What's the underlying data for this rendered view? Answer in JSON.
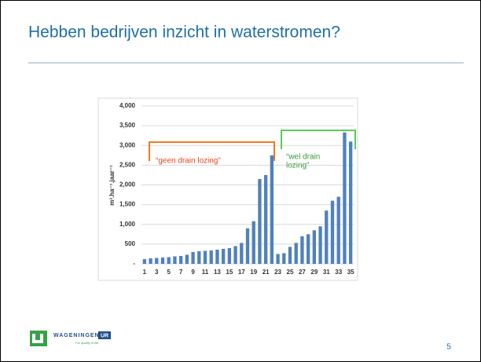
{
  "title": "Hebben bedrijven inzicht in waterstromen?",
  "chart_data": {
    "type": "bar",
    "y_label": "m³.ha⁻¹.jaar⁻¹",
    "categories": [
      "1",
      null,
      "3",
      null,
      "5",
      null,
      "7",
      null,
      "9",
      null,
      "11",
      null,
      "13",
      null,
      "15",
      null,
      "17",
      null,
      "19",
      null,
      "21",
      null,
      "23",
      null,
      "25",
      null,
      "27",
      null,
      "29",
      null,
      "31",
      null,
      "33",
      null,
      "35"
    ],
    "values": [
      120,
      140,
      150,
      160,
      170,
      190,
      200,
      230,
      300,
      320,
      330,
      340,
      360,
      380,
      400,
      450,
      530,
      900,
      1080,
      2150,
      2250,
      2750,
      250,
      270,
      430,
      530,
      700,
      750,
      850,
      950,
      1350,
      1600,
      1700,
      3330,
      3100
    ],
    "color": "#4f81bd",
    "ylim": [
      0,
      4000
    ],
    "yticks": [
      {
        "value": 0,
        "label": "-"
      },
      500,
      {
        "value": 1000,
        "label": "1,000"
      },
      {
        "value": 1500,
        "label": "1,500"
      },
      {
        "value": 2000,
        "label": "2,000"
      },
      {
        "value": 2500,
        "label": "2,500"
      },
      {
        "value": 3000,
        "label": "3,000"
      },
      {
        "value": 3500,
        "label": "3,500"
      },
      {
        "value": 4000,
        "label": "4,000"
      }
    ],
    "grid": true,
    "annotations": [
      {
        "lines": [
          "“geen drain lozing”"
        ],
        "color": "#e8461e",
        "bracket_color": "#f07820"
      },
      {
        "lines": [
          "“wel drain",
          "lozing”"
        ],
        "color": "#3a9a3a",
        "bracket_color": "#5cc85c"
      }
    ]
  },
  "logo": {
    "name": "WAGENINGEN",
    "suffix": "UR",
    "tagline": "For quality of life"
  },
  "page_number": "5"
}
